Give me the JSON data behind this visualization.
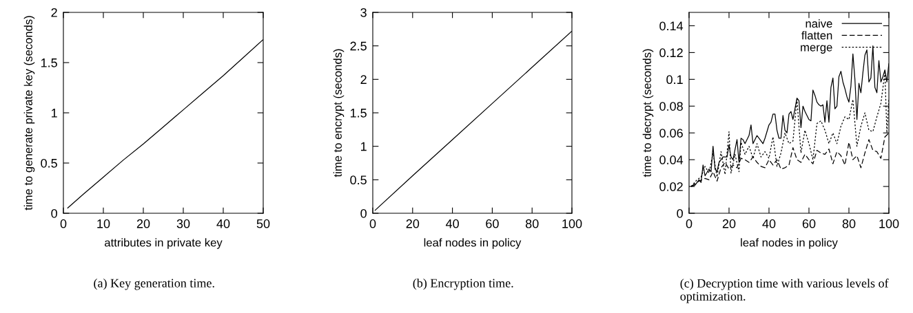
{
  "chart_data": [
    {
      "type": "line",
      "xlabel": "attributes in private key",
      "ylabel": "time to generate private key (seconds)",
      "annotations": [
        "(a) Key generation time."
      ],
      "xlim": [
        0,
        50
      ],
      "xticks": [
        0,
        10,
        20,
        30,
        40,
        50
      ],
      "ylim": [
        0,
        2
      ],
      "yticks": [
        0,
        0.5,
        1,
        1.5,
        2
      ],
      "grid": false,
      "legend": false,
      "series": [
        {
          "color": "#000000",
          "line_style": "solid",
          "x": [
            1,
            5,
            10,
            15,
            20,
            25,
            30,
            35,
            40,
            45,
            50
          ],
          "values": [
            0.05,
            0.19,
            0.36,
            0.53,
            0.69,
            0.86,
            1.03,
            1.2,
            1.37,
            1.55,
            1.73
          ]
        }
      ]
    },
    {
      "type": "line",
      "xlabel": "leaf nodes in policy",
      "ylabel": "time to encrypt (seconds)",
      "annotations": [
        "(b) Encryption time."
      ],
      "xlim": [
        0,
        100
      ],
      "xticks": [
        0,
        20,
        40,
        60,
        80,
        100
      ],
      "ylim": [
        0,
        3
      ],
      "yticks": [
        0,
        0.5,
        1,
        1.5,
        2,
        2.5,
        3
      ],
      "grid": false,
      "legend": false,
      "series": [
        {
          "color": "#000000",
          "line_style": "solid",
          "x": [
            1,
            20,
            40,
            60,
            80,
            100
          ],
          "values": [
            0.04,
            0.56,
            1.1,
            1.64,
            2.18,
            2.72
          ]
        }
      ]
    },
    {
      "type": "line",
      "xlabel": "leaf nodes in policy",
      "ylabel": "time to decrypt (seconds)",
      "annotations": [
        "(c) Decryption time with various levels of optimization."
      ],
      "xlim": [
        0,
        100
      ],
      "xticks": [
        0,
        20,
        40,
        60,
        80,
        100
      ],
      "ylim": [
        0,
        0.15
      ],
      "yticks": [
        0,
        0.02,
        0.04,
        0.06,
        0.08,
        0.1,
        0.12,
        0.14
      ],
      "grid": false,
      "legend": "top right",
      "series": [
        {
          "name": "naive",
          "color": "#000000",
          "line_style": "solid",
          "x": [
            1,
            3,
            5,
            6,
            7,
            8,
            10,
            11,
            12,
            13,
            14,
            15,
            17,
            19,
            20,
            21,
            22,
            24,
            25,
            26,
            27,
            28,
            30,
            31,
            32,
            34,
            35,
            37,
            38,
            40,
            41,
            42,
            43,
            44,
            45,
            46,
            47,
            48,
            49,
            50,
            51,
            52,
            54,
            55,
            56,
            57,
            58,
            60,
            61,
            62,
            63,
            64,
            65,
            66,
            67,
            68,
            69,
            70,
            71,
            72,
            73,
            74,
            75,
            76,
            77,
            78,
            79,
            80,
            81,
            82,
            83,
            84,
            85,
            86,
            87,
            88,
            89,
            90,
            91,
            92,
            93,
            94,
            95,
            96,
            97,
            98,
            99,
            100
          ],
          "values": [
            0.02,
            0.021,
            0.025,
            0.023,
            0.036,
            0.028,
            0.033,
            0.031,
            0.05,
            0.033,
            0.031,
            0.038,
            0.042,
            0.042,
            0.051,
            0.042,
            0.04,
            0.055,
            0.038,
            0.056,
            0.055,
            0.052,
            0.058,
            0.066,
            0.052,
            0.058,
            0.056,
            0.052,
            0.056,
            0.066,
            0.068,
            0.074,
            0.074,
            0.062,
            0.056,
            0.056,
            0.073,
            0.062,
            0.06,
            0.074,
            0.076,
            0.07,
            0.086,
            0.084,
            0.064,
            0.08,
            0.076,
            0.07,
            0.069,
            0.092,
            0.088,
            0.083,
            0.081,
            0.08,
            0.081,
            0.068,
            0.084,
            0.068,
            0.094,
            0.101,
            0.078,
            0.08,
            0.102,
            0.106,
            0.098,
            0.093,
            0.087,
            0.083,
            0.095,
            0.119,
            0.1,
            0.07,
            0.097,
            0.09,
            0.105,
            0.118,
            0.122,
            0.098,
            0.101,
            0.125,
            0.094,
            0.09,
            0.114,
            0.098,
            0.102,
            0.107,
            0.098,
            0.112
          ]
        },
        {
          "name": "flatten",
          "color": "#000000",
          "line_style": "dashed",
          "x": [
            1,
            5,
            8,
            10,
            12,
            14,
            16,
            18,
            20,
            22,
            24,
            26,
            28,
            30,
            32,
            34,
            36,
            38,
            40,
            42,
            44,
            46,
            48,
            50,
            52,
            54,
            56,
            58,
            60,
            62,
            64,
            66,
            68,
            70,
            72,
            74,
            76,
            78,
            80,
            82,
            84,
            86,
            88,
            90,
            92,
            94,
            96,
            98,
            100
          ],
          "values": [
            0.02,
            0.024,
            0.026,
            0.025,
            0.031,
            0.024,
            0.034,
            0.038,
            0.033,
            0.036,
            0.034,
            0.041,
            0.04,
            0.038,
            0.042,
            0.038,
            0.035,
            0.034,
            0.04,
            0.036,
            0.04,
            0.033,
            0.034,
            0.036,
            0.049,
            0.04,
            0.038,
            0.044,
            0.04,
            0.037,
            0.047,
            0.045,
            0.044,
            0.048,
            0.037,
            0.046,
            0.043,
            0.036,
            0.053,
            0.04,
            0.043,
            0.034,
            0.045,
            0.055,
            0.047,
            0.046,
            0.041,
            0.057,
            0.06
          ]
        },
        {
          "name": "merge",
          "color": "#000000",
          "line_style": "dotted",
          "x": [
            1,
            4,
            6,
            8,
            10,
            12,
            14,
            16,
            18,
            20,
            21,
            23,
            25,
            26,
            28,
            30,
            32,
            34,
            36,
            38,
            40,
            42,
            44,
            46,
            48,
            50,
            52,
            54,
            56,
            58,
            60,
            62,
            64,
            66,
            68,
            70,
            72,
            74,
            76,
            78,
            80,
            82,
            84,
            86,
            88,
            90,
            92,
            94,
            96,
            98,
            99,
            100
          ],
          "values": [
            0.02,
            0.025,
            0.027,
            0.035,
            0.03,
            0.045,
            0.027,
            0.046,
            0.029,
            0.061,
            0.03,
            0.044,
            0.031,
            0.053,
            0.044,
            0.05,
            0.041,
            0.052,
            0.042,
            0.046,
            0.041,
            0.057,
            0.035,
            0.045,
            0.06,
            0.052,
            0.054,
            0.085,
            0.045,
            0.062,
            0.052,
            0.04,
            0.067,
            0.069,
            0.062,
            0.052,
            0.06,
            0.052,
            0.065,
            0.072,
            0.07,
            0.085,
            0.05,
            0.065,
            0.075,
            0.062,
            0.061,
            0.072,
            0.082,
            0.105,
            0.06,
            0.085
          ]
        }
      ]
    }
  ]
}
